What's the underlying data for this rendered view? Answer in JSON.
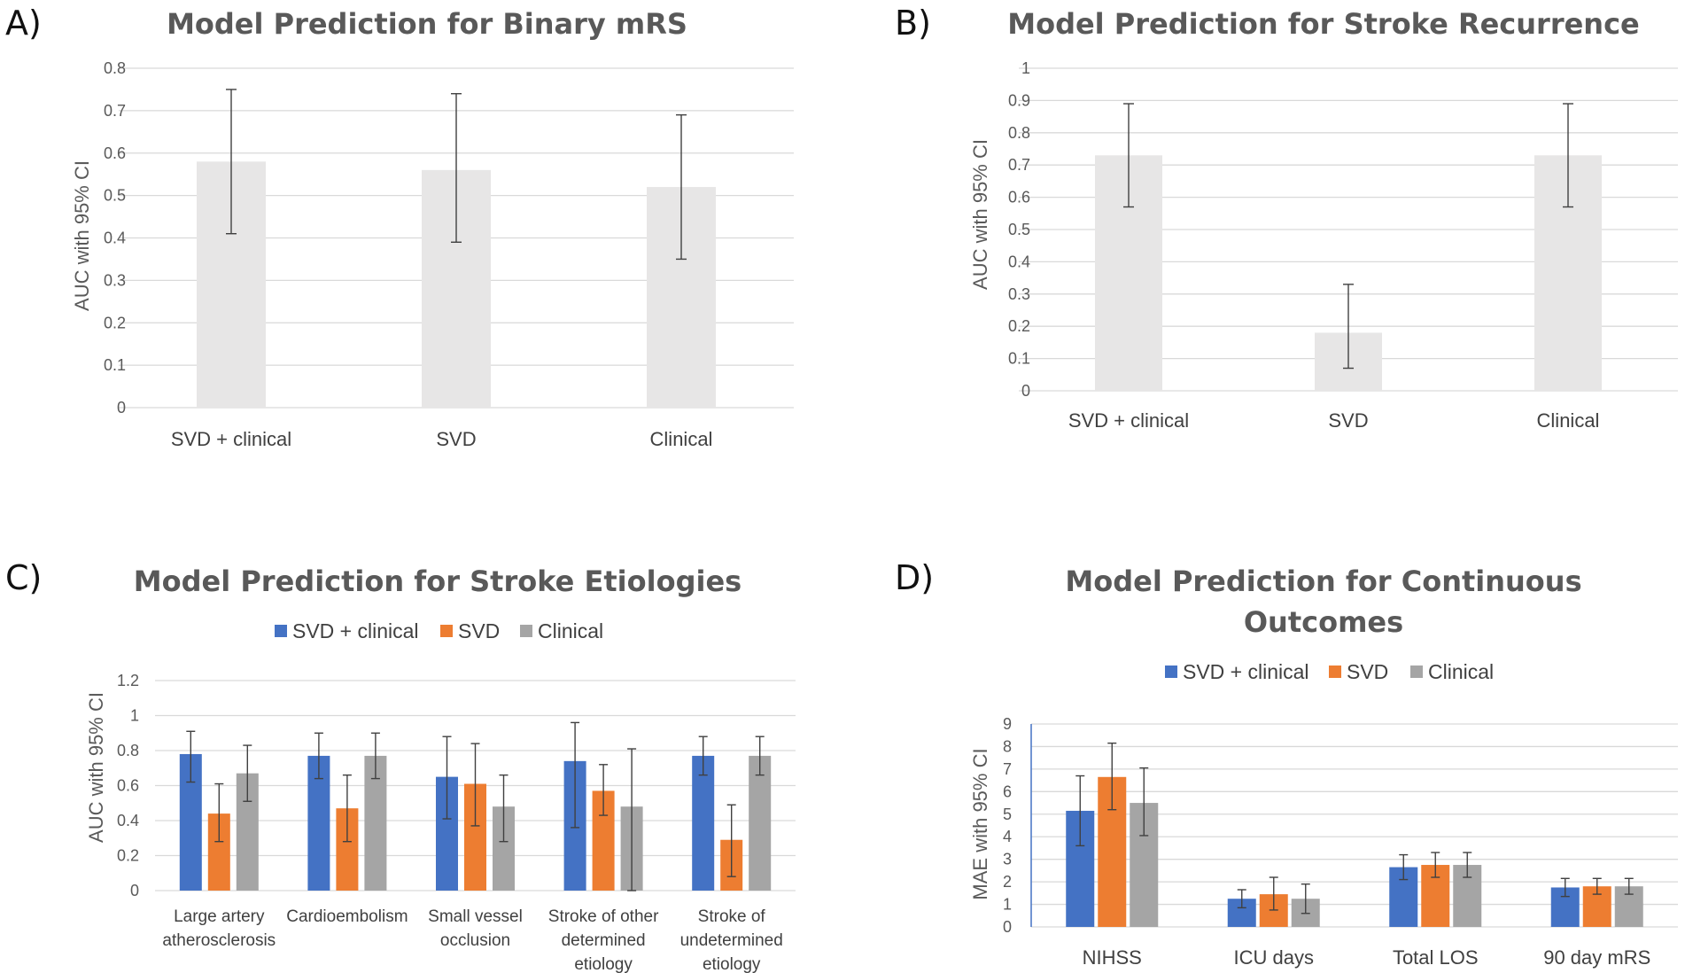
{
  "colors": {
    "svd_clinical": "#4472c4",
    "svd": "#ed7d31",
    "clinical": "#a5a5a5",
    "single": "#e7e6e6",
    "gridline": "#d9d9d9",
    "errorbar": "#404040"
  },
  "chart_data": [
    {
      "panel": "A)",
      "type": "bar",
      "title": "Model Prediction for Binary mRS",
      "ylabel": "AUC with 95% CI",
      "xlabel": "",
      "ylim": [
        0,
        0.8
      ],
      "yticks": [
        "0",
        "0.1",
        "0.2",
        "0.3",
        "0.4",
        "0.5",
        "0.6",
        "0.7",
        "0.8"
      ],
      "categories": [
        "SVD + clinical",
        "SVD",
        "Clinical"
      ],
      "series": [
        {
          "name": "AUC",
          "values": [
            0.58,
            0.56,
            0.52
          ],
          "lower": [
            0.41,
            0.39,
            0.35
          ],
          "upper": [
            0.75,
            0.74,
            0.69
          ]
        }
      ],
      "legend": "none",
      "grid": true
    },
    {
      "panel": "B)",
      "type": "bar",
      "title": "Model Prediction for Stroke Recurrence",
      "ylabel": "AUC with 95% CI",
      "xlabel": "",
      "ylim": [
        0,
        1
      ],
      "yticks": [
        "0",
        "0.1",
        "0.2",
        "0.3",
        "0.4",
        "0.5",
        "0.6",
        "0.7",
        "0.8",
        "0.9",
        "1"
      ],
      "categories": [
        "SVD + clinical",
        "SVD",
        "Clinical"
      ],
      "series": [
        {
          "name": "AUC",
          "values": [
            0.73,
            0.18,
            0.73
          ],
          "lower": [
            0.57,
            0.07,
            0.57
          ],
          "upper": [
            0.89,
            0.33,
            0.89
          ]
        }
      ],
      "legend": "none",
      "grid": true
    },
    {
      "panel": "C)",
      "type": "bar",
      "title": "Model Prediction for Stroke Etiologies",
      "ylabel": "AUC with 95% CI",
      "xlabel": "",
      "ylim": [
        0,
        1.2
      ],
      "yticks": [
        "0",
        "0.2",
        "0.4",
        "0.6",
        "0.8",
        "1",
        "1.2"
      ],
      "categories": [
        [
          "Large artery",
          "atherosclerosis"
        ],
        [
          "Cardioembolism"
        ],
        [
          "Small vessel",
          "occlusion"
        ],
        [
          "Stroke of other",
          "determined",
          "etiology"
        ],
        [
          "Stroke of",
          "undetermined",
          "etiology"
        ]
      ],
      "series": [
        {
          "name": "SVD + clinical",
          "values": [
            0.78,
            0.77,
            0.65,
            0.74,
            0.77
          ],
          "lower": [
            0.62,
            0.64,
            0.41,
            0.36,
            0.66
          ],
          "upper": [
            0.91,
            0.9,
            0.88,
            0.96,
            0.88
          ]
        },
        {
          "name": "SVD",
          "values": [
            0.44,
            0.47,
            0.61,
            0.57,
            0.29
          ],
          "lower": [
            0.28,
            0.28,
            0.37,
            0.43,
            0.08
          ],
          "upper": [
            0.61,
            0.66,
            0.84,
            0.72,
            0.49
          ]
        },
        {
          "name": "Clinical",
          "values": [
            0.67,
            0.77,
            0.48,
            0.48,
            0.77
          ],
          "lower": [
            0.51,
            0.64,
            0.28,
            0.0,
            0.66
          ],
          "upper": [
            0.83,
            0.9,
            0.66,
            0.81,
            0.88
          ]
        }
      ],
      "legend": "top",
      "grid": true
    },
    {
      "panel": "D)",
      "type": "bar",
      "title": [
        "Model Prediction for Continuous",
        "Outcomes"
      ],
      "ylabel": "MAE with 95% CI",
      "xlabel": "",
      "ylim": [
        0,
        9
      ],
      "yticks": [
        "0",
        "1",
        "2",
        "3",
        "4",
        "5",
        "6",
        "7",
        "8",
        "9"
      ],
      "categories": [
        [
          "NIHSS"
        ],
        [
          "ICU days"
        ],
        [
          "Total LOS"
        ],
        [
          "90 day mRS"
        ]
      ],
      "series": [
        {
          "name": "SVD + clinical",
          "values": [
            5.15,
            1.25,
            2.65,
            1.75
          ],
          "lower": [
            3.6,
            0.85,
            2.1,
            1.35
          ],
          "upper": [
            6.7,
            1.65,
            3.2,
            2.15
          ]
        },
        {
          "name": "SVD",
          "values": [
            6.65,
            1.45,
            2.75,
            1.8
          ],
          "lower": [
            5.2,
            0.75,
            2.2,
            1.45
          ],
          "upper": [
            8.15,
            2.2,
            3.3,
            2.15
          ]
        },
        {
          "name": "Clinical",
          "values": [
            5.5,
            1.25,
            2.75,
            1.8
          ],
          "lower": [
            4.05,
            0.6,
            2.2,
            1.45
          ],
          "upper": [
            7.05,
            1.9,
            3.3,
            2.15
          ]
        }
      ],
      "legend": "top",
      "grid": true
    }
  ]
}
